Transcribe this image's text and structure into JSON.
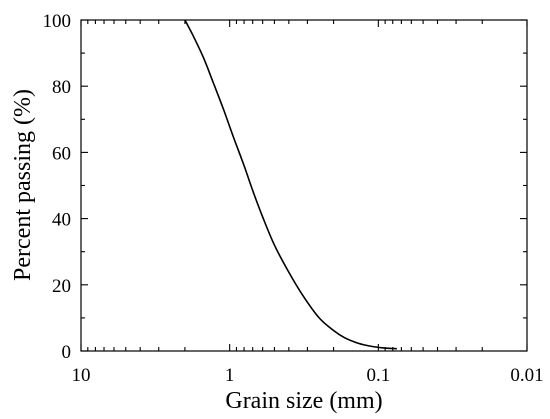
{
  "chart_data": {
    "type": "line",
    "title": "",
    "xlabel": "Grain size (mm)",
    "ylabel": "Percent passing (%)",
    "x_scale": "log",
    "x_reversed": true,
    "xlim": [
      10,
      0.01
    ],
    "ylim": [
      0,
      100
    ],
    "x_ticks": [
      10,
      1,
      0.1,
      0.01
    ],
    "x_tick_labels": [
      "10",
      "1",
      "0.1",
      "0.01"
    ],
    "y_ticks": [
      0,
      20,
      40,
      60,
      80,
      100
    ],
    "y_tick_labels": [
      "0",
      "20",
      "40",
      "60",
      "80",
      "100"
    ],
    "grid": false,
    "series": [
      {
        "color": "#000000",
        "x": [
          2.0,
          1.75,
          1.5,
          1.3,
          1.1,
          0.95,
          0.8,
          0.7,
          0.6,
          0.5,
          0.4,
          0.32,
          0.25,
          0.2,
          0.17,
          0.14,
          0.12,
          0.1,
          0.09,
          0.075
        ],
        "y": [
          100,
          95,
          88.6,
          81.5,
          73,
          65,
          56,
          48.5,
          40.5,
          32,
          23.8,
          16.6,
          10,
          6.2,
          4.1,
          2.5,
          1.7,
          1.1,
          0.9,
          0.7
        ]
      }
    ]
  }
}
